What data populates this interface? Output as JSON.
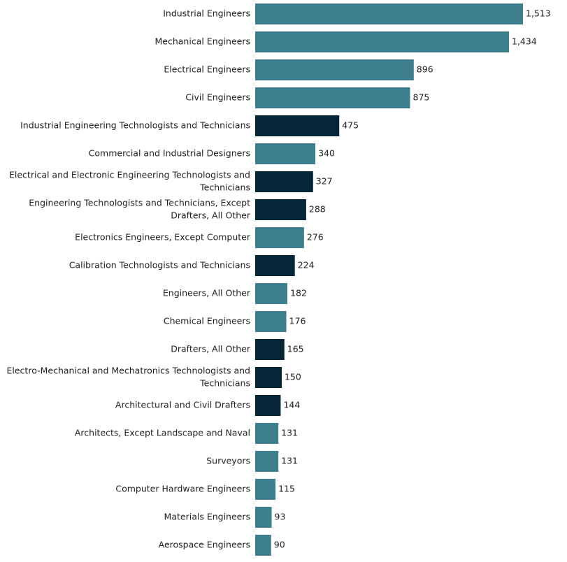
{
  "chart_data": {
    "type": "bar",
    "orientation": "horizontal",
    "title": "",
    "xlabel": "",
    "ylabel": "",
    "xlim": [
      0,
      1513
    ],
    "grid": false,
    "legend": "none",
    "colors": {
      "engineer": "#3d7f8c",
      "technician": "#052636"
    },
    "bars": [
      {
        "label": [
          "Industrial Engineers"
        ],
        "value": 1513,
        "value_label": "1,513",
        "group": "engineer"
      },
      {
        "label": [
          "Mechanical Engineers"
        ],
        "value": 1434,
        "value_label": "1,434",
        "group": "engineer"
      },
      {
        "label": [
          "Electrical Engineers"
        ],
        "value": 896,
        "value_label": "896",
        "group": "engineer"
      },
      {
        "label": [
          "Civil Engineers"
        ],
        "value": 875,
        "value_label": "875",
        "group": "engineer"
      },
      {
        "label": [
          "Industrial Engineering Technologists and Technicians"
        ],
        "value": 475,
        "value_label": "475",
        "group": "technician"
      },
      {
        "label": [
          "Commercial and Industrial Designers"
        ],
        "value": 340,
        "value_label": "340",
        "group": "engineer"
      },
      {
        "label": [
          "Electrical and Electronic Engineering Technologists and",
          "Technicians"
        ],
        "value": 327,
        "value_label": "327",
        "group": "technician"
      },
      {
        "label": [
          "Engineering Technologists and Technicians, Except",
          "Drafters, All Other"
        ],
        "value": 288,
        "value_label": "288",
        "group": "technician"
      },
      {
        "label": [
          "Electronics Engineers, Except Computer"
        ],
        "value": 276,
        "value_label": "276",
        "group": "engineer"
      },
      {
        "label": [
          "Calibration Technologists and Technicians"
        ],
        "value": 224,
        "value_label": "224",
        "group": "technician"
      },
      {
        "label": [
          "Engineers, All Other"
        ],
        "value": 182,
        "value_label": "182",
        "group": "engineer"
      },
      {
        "label": [
          "Chemical Engineers"
        ],
        "value": 176,
        "value_label": "176",
        "group": "engineer"
      },
      {
        "label": [
          "Drafters, All Other"
        ],
        "value": 165,
        "value_label": "165",
        "group": "technician"
      },
      {
        "label": [
          "Electro-Mechanical and Mechatronics Technologists and",
          "Technicians"
        ],
        "value": 150,
        "value_label": "150",
        "group": "technician"
      },
      {
        "label": [
          "Architectural and Civil Drafters"
        ],
        "value": 144,
        "value_label": "144",
        "group": "technician"
      },
      {
        "label": [
          "Architects, Except Landscape and Naval"
        ],
        "value": 131,
        "value_label": "131",
        "group": "engineer"
      },
      {
        "label": [
          "Surveyors"
        ],
        "value": 131,
        "value_label": "131",
        "group": "engineer"
      },
      {
        "label": [
          "Computer Hardware Engineers"
        ],
        "value": 115,
        "value_label": "115",
        "group": "engineer"
      },
      {
        "label": [
          "Materials Engineers"
        ],
        "value": 93,
        "value_label": "93",
        "group": "engineer"
      },
      {
        "label": [
          "Aerospace Engineers"
        ],
        "value": 90,
        "value_label": "90",
        "group": "engineer"
      }
    ]
  }
}
